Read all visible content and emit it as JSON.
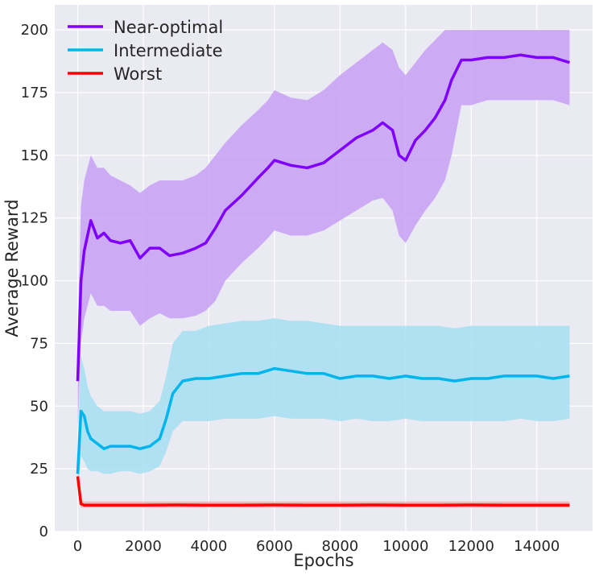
{
  "chart_data": {
    "type": "line",
    "title": "",
    "xlabel": "Epochs",
    "ylabel": "Average Reward",
    "xlim": [
      -700,
      15700
    ],
    "ylim": [
      0,
      210
    ],
    "xticks": [
      0,
      2000,
      4000,
      6000,
      8000,
      10000,
      12000,
      14000
    ],
    "yticks": [
      0,
      25,
      50,
      75,
      100,
      125,
      150,
      175,
      200
    ],
    "grid": true,
    "legend_position": "top-left",
    "series": [
      {
        "name": "Near-optimal",
        "color": "#8000ff",
        "band_color": "#c8a0f5",
        "x": [
          0,
          100,
          200,
          300,
          400,
          600,
          800,
          1000,
          1300,
          1600,
          1900,
          2200,
          2500,
          2800,
          3200,
          3600,
          3900,
          4200,
          4500,
          5000,
          5500,
          5800,
          6000,
          6500,
          7000,
          7500,
          8000,
          8500,
          9000,
          9300,
          9600,
          9800,
          10000,
          10300,
          10600,
          10900,
          11200,
          11400,
          11700,
          12000,
          12500,
          13000,
          13500,
          14000,
          14500,
          15000
        ],
        "values": [
          60,
          100,
          112,
          118,
          124,
          117,
          119,
          116,
          115,
          116,
          109,
          113,
          113,
          110,
          111,
          113,
          115,
          121,
          128,
          134,
          141,
          145,
          148,
          146,
          145,
          147,
          152,
          157,
          160,
          163,
          160,
          150,
          148,
          156,
          160,
          165,
          172,
          180,
          188,
          188,
          189,
          189,
          190,
          189,
          189,
          187
        ],
        "upper": [
          80,
          130,
          140,
          145,
          150,
          145,
          145,
          142,
          140,
          138,
          135,
          138,
          140,
          140,
          140,
          142,
          145,
          150,
          155,
          162,
          168,
          172,
          176,
          173,
          172,
          176,
          182,
          187,
          192,
          195,
          192,
          185,
          182,
          187,
          192,
          196,
          200,
          200,
          200,
          200,
          200,
          200,
          200,
          200,
          200,
          200
        ],
        "lower": [
          40,
          75,
          85,
          90,
          95,
          90,
          90,
          88,
          88,
          88,
          82,
          85,
          87,
          85,
          85,
          86,
          88,
          92,
          100,
          107,
          113,
          117,
          120,
          118,
          118,
          120,
          124,
          128,
          132,
          133,
          128,
          118,
          115,
          122,
          128,
          133,
          140,
          150,
          170,
          170,
          172,
          172,
          172,
          172,
          172,
          170
        ]
      },
      {
        "name": "Intermediate",
        "color": "#00b5eb",
        "band_color": "#a6dff2",
        "x": [
          0,
          100,
          200,
          300,
          400,
          600,
          800,
          1000,
          1300,
          1600,
          1900,
          2200,
          2500,
          2700,
          2900,
          3200,
          3600,
          4000,
          4500,
          5000,
          5500,
          6000,
          6500,
          7000,
          7500,
          8000,
          8500,
          9000,
          9500,
          10000,
          10500,
          11000,
          11500,
          12000,
          12500,
          13000,
          13500,
          14000,
          14500,
          15000
        ],
        "values": [
          23,
          48,
          46,
          40,
          37,
          35,
          33,
          34,
          34,
          34,
          33,
          34,
          37,
          45,
          55,
          60,
          61,
          61,
          62,
          63,
          63,
          65,
          64,
          63,
          63,
          61,
          62,
          62,
          61,
          62,
          61,
          61,
          60,
          61,
          61,
          62,
          62,
          62,
          61,
          62
        ],
        "upper": [
          35,
          70,
          65,
          58,
          54,
          50,
          48,
          48,
          48,
          48,
          47,
          48,
          52,
          62,
          75,
          80,
          80,
          82,
          83,
          84,
          84,
          85,
          84,
          84,
          83,
          82,
          82,
          82,
          82,
          82,
          82,
          82,
          81,
          82,
          82,
          82,
          82,
          82,
          82,
          82
        ],
        "lower": [
          15,
          30,
          28,
          25,
          24,
          24,
          23,
          23,
          24,
          24,
          23,
          24,
          26,
          32,
          40,
          44,
          44,
          44,
          45,
          45,
          45,
          46,
          45,
          45,
          45,
          44,
          45,
          44,
          44,
          45,
          44,
          44,
          44,
          44,
          44,
          44,
          45,
          44,
          44,
          45
        ]
      },
      {
        "name": "Worst",
        "color": "#ff0000",
        "band_color": "#f5b0b0",
        "x": [
          0,
          100,
          200,
          500,
          1000,
          2000,
          3000,
          4000,
          5000,
          6000,
          7000,
          8000,
          9000,
          10000,
          11000,
          12000,
          13000,
          14000,
          15000
        ],
        "values": [
          22,
          11,
          10.5,
          10.5,
          10.5,
          10.5,
          10.6,
          10.5,
          10.5,
          10.6,
          10.5,
          10.5,
          10.6,
          10.5,
          10.5,
          10.6,
          10.5,
          10.5,
          10.5
        ],
        "upper": [
          24,
          13,
          12,
          12,
          12,
          12,
          12,
          12,
          12,
          12,
          12,
          12,
          12,
          12,
          12,
          12,
          12,
          12,
          12
        ],
        "lower": [
          20,
          9.5,
          9.5,
          9.5,
          9.5,
          9.5,
          9.5,
          9.5,
          9.5,
          9.5,
          9.5,
          9.5,
          9.5,
          9.5,
          9.5,
          9.5,
          9.5,
          9.5,
          9.5
        ]
      }
    ]
  }
}
